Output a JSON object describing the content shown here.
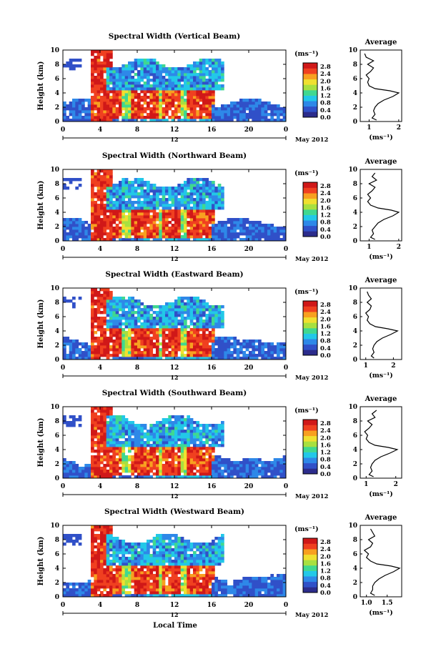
{
  "colors": {
    "scale": [
      "#2c2c8c",
      "#3050c8",
      "#2e88e8",
      "#22c8e8",
      "#40d890",
      "#a8e040",
      "#f0e030",
      "#f8a020",
      "#f04020",
      "#d01818"
    ]
  },
  "common": {
    "ylabel": "Height (km)",
    "xlabel": "Local Time",
    "unit": "(ms⁻¹)",
    "date_label": "May 2012",
    "day_label": "12",
    "profile_title": "Average",
    "profile_xlabel": "(ms⁻¹)",
    "x_ticks": [
      "0",
      "4",
      "8",
      "12",
      "16",
      "20",
      "0"
    ],
    "y_ticks": [
      "0",
      "2",
      "4",
      "6",
      "8",
      "10"
    ],
    "colorbar_ticks": [
      "0.0",
      "0.4",
      "0.8",
      "1.2",
      "1.6",
      "2.0",
      "2.4",
      "2.8"
    ]
  },
  "chart_data": [
    {
      "type": "heatmap",
      "title": "Spectral Width (Vertical Beam)",
      "xlim": [
        0,
        24
      ],
      "ylim": [
        0,
        10
      ],
      "clim": [
        0.0,
        3.0
      ],
      "profile": {
        "type": "line",
        "xlim": [
          0.7,
          2.1
        ],
        "x_ticks": [
          "1",
          "2"
        ],
        "heights": [
          0.2,
          0.5,
          1.0,
          1.5,
          2.0,
          2.5,
          3.0,
          3.5,
          4.0,
          4.3,
          4.6,
          5.0,
          5.5,
          6.0,
          6.5,
          7.0,
          7.5,
          8.0,
          8.5,
          9.0,
          9.5
        ],
        "values": [
          1.25,
          1.1,
          1.2,
          1.15,
          1.2,
          1.3,
          1.5,
          1.8,
          2.0,
          1.7,
          1.2,
          1.0,
          0.95,
          1.0,
          0.9,
          1.05,
          1.15,
          0.95,
          1.15,
          0.9,
          0.85
        ]
      }
    },
    {
      "type": "heatmap",
      "title": "Spectral Width (Northward Beam)",
      "xlim": [
        0,
        24
      ],
      "ylim": [
        0,
        10
      ],
      "clim": [
        0.0,
        3.0
      ],
      "profile": {
        "type": "line",
        "xlim": [
          0.7,
          2.1
        ],
        "x_ticks": [
          "1",
          "2"
        ],
        "heights": [
          0.2,
          0.5,
          1.0,
          1.5,
          2.0,
          2.5,
          3.0,
          3.5,
          4.0,
          4.3,
          4.6,
          5.0,
          5.5,
          6.0,
          6.5,
          7.0,
          7.5,
          8.0,
          8.5,
          9.0,
          9.5
        ],
        "values": [
          1.2,
          1.05,
          1.15,
          1.1,
          1.2,
          1.3,
          1.5,
          1.8,
          2.0,
          1.75,
          1.3,
          1.05,
          0.95,
          1.05,
          0.95,
          1.1,
          1.2,
          1.0,
          1.25,
          1.1,
          1.2
        ]
      }
    },
    {
      "type": "heatmap",
      "title": "Spectral Width (Eastward Beam)",
      "xlim": [
        0,
        24
      ],
      "ylim": [
        0,
        10
      ],
      "clim": [
        0.0,
        3.0
      ],
      "profile": {
        "type": "line",
        "xlim": [
          0.8,
          2.3
        ],
        "x_ticks": [
          "1",
          "2"
        ],
        "heights": [
          0.2,
          0.5,
          1.0,
          1.5,
          2.0,
          2.5,
          3.0,
          3.5,
          4.0,
          4.3,
          4.6,
          5.0,
          5.5,
          6.0,
          6.5,
          7.0,
          7.5,
          8.0,
          8.5,
          9.0,
          9.5
        ],
        "values": [
          1.3,
          1.2,
          1.3,
          1.25,
          1.3,
          1.4,
          1.6,
          1.9,
          2.15,
          1.8,
          1.35,
          1.15,
          1.05,
          1.1,
          1.0,
          1.15,
          1.2,
          1.05,
          1.2,
          1.1,
          1.05
        ]
      }
    },
    {
      "type": "heatmap",
      "title": "Spectral Width (Southward Beam)",
      "xlim": [
        0,
        24
      ],
      "ylim": [
        0,
        10
      ],
      "clim": [
        0.0,
        3.0
      ],
      "profile": {
        "type": "line",
        "xlim": [
          0.8,
          2.2
        ],
        "x_ticks": [
          "1",
          "2"
        ],
        "heights": [
          0.2,
          0.5,
          1.0,
          1.5,
          2.0,
          2.5,
          3.0,
          3.5,
          4.0,
          4.3,
          4.6,
          5.0,
          5.5,
          6.0,
          6.5,
          7.0,
          7.5,
          8.0,
          8.5,
          9.0,
          9.5
        ],
        "values": [
          1.25,
          1.1,
          1.2,
          1.15,
          1.2,
          1.3,
          1.5,
          1.8,
          2.05,
          1.75,
          1.3,
          1.1,
          1.0,
          1.05,
          0.95,
          1.1,
          1.2,
          1.05,
          1.3,
          1.2,
          1.35
        ]
      }
    },
    {
      "type": "heatmap",
      "title": "Spectral Width (Westward Beam)",
      "xlim": [
        0,
        24
      ],
      "ylim": [
        0,
        10
      ],
      "clim": [
        0.0,
        3.0
      ],
      "profile": {
        "type": "line",
        "xlim": [
          0.85,
          1.85
        ],
        "x_ticks": [
          "1.0",
          "1.5"
        ],
        "heights": [
          0.2,
          0.5,
          1.0,
          1.5,
          2.0,
          2.5,
          3.0,
          3.5,
          4.0,
          4.3,
          4.6,
          5.0,
          5.5,
          6.0,
          6.5,
          7.0,
          7.5,
          8.0,
          8.5,
          9.0,
          9.5
        ],
        "values": [
          1.2,
          1.1,
          1.15,
          1.15,
          1.2,
          1.3,
          1.45,
          1.65,
          1.8,
          1.6,
          1.25,
          1.1,
          1.0,
          1.05,
          0.95,
          1.1,
          1.15,
          1.05,
          1.2,
          1.15,
          1.1
        ]
      }
    }
  ]
}
